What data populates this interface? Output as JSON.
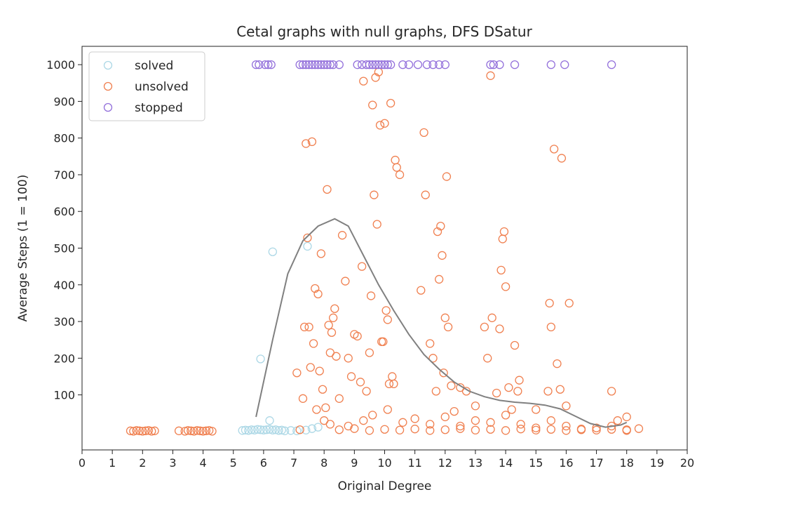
{
  "chart_data": {
    "type": "scatter",
    "title": "Cetal graphs with null graphs, DFS DSatur",
    "xlabel": "Original Degree",
    "ylabel": "Average Steps (1 = 100)",
    "xlim": [
      0,
      20
    ],
    "ylim": [
      -50,
      1050
    ],
    "x_ticks": [
      0,
      1,
      2,
      3,
      4,
      5,
      6,
      7,
      8,
      9,
      10,
      11,
      12,
      13,
      14,
      15,
      16,
      17,
      18,
      19,
      20
    ],
    "y_ticks": [
      100,
      200,
      300,
      400,
      500,
      600,
      700,
      800,
      900,
      1000
    ],
    "grid": false,
    "legend": {
      "position": "upper-left",
      "marker": "hollow-circle"
    },
    "colors": {
      "solved": "#add8e6",
      "unsolved": "#f08050",
      "stopped": "#9370db",
      "trend": "#808080"
    },
    "series": [
      {
        "name": "solved",
        "color": "#add8e6",
        "points": [
          [
            5.9,
            198
          ],
          [
            6.3,
            490
          ],
          [
            6.2,
            30
          ],
          [
            7.45,
            505
          ],
          [
            5.3,
            3
          ],
          [
            5.4,
            4
          ],
          [
            5.5,
            3
          ],
          [
            5.6,
            5
          ],
          [
            5.7,
            4
          ],
          [
            5.8,
            6
          ],
          [
            5.9,
            5
          ],
          [
            6.0,
            4
          ],
          [
            6.1,
            5
          ],
          [
            6.2,
            6
          ],
          [
            6.3,
            4
          ],
          [
            6.4,
            5
          ],
          [
            6.5,
            3
          ],
          [
            6.6,
            4
          ],
          [
            6.7,
            2
          ],
          [
            6.9,
            3
          ],
          [
            7.1,
            2
          ],
          [
            7.4,
            4
          ],
          [
            7.6,
            8
          ],
          [
            7.8,
            12
          ]
        ]
      },
      {
        "name": "unsolved",
        "color": "#f08050",
        "points": [
          [
            1.6,
            2
          ],
          [
            1.7,
            1
          ],
          [
            1.8,
            3
          ],
          [
            1.9,
            2
          ],
          [
            2.0,
            1
          ],
          [
            2.1,
            2
          ],
          [
            2.2,
            3
          ],
          [
            2.3,
            1
          ],
          [
            2.4,
            2
          ],
          [
            3.2,
            2
          ],
          [
            3.4,
            1
          ],
          [
            3.5,
            3
          ],
          [
            3.6,
            2
          ],
          [
            3.7,
            1
          ],
          [
            3.8,
            3
          ],
          [
            3.9,
            2
          ],
          [
            4.0,
            1
          ],
          [
            4.1,
            2
          ],
          [
            4.2,
            3
          ],
          [
            4.3,
            1
          ],
          [
            7.1,
            160
          ],
          [
            7.2,
            5
          ],
          [
            7.3,
            90
          ],
          [
            7.35,
            285
          ],
          [
            7.4,
            785
          ],
          [
            7.45,
            528
          ],
          [
            7.5,
            285
          ],
          [
            7.55,
            175
          ],
          [
            7.6,
            790
          ],
          [
            7.65,
            240
          ],
          [
            7.7,
            390
          ],
          [
            7.75,
            60
          ],
          [
            7.8,
            375
          ],
          [
            7.85,
            165
          ],
          [
            7.9,
            485
          ],
          [
            7.95,
            115
          ],
          [
            8.0,
            30
          ],
          [
            8.05,
            65
          ],
          [
            8.1,
            660
          ],
          [
            8.15,
            290
          ],
          [
            8.2,
            215
          ],
          [
            8.25,
            270
          ],
          [
            8.3,
            310
          ],
          [
            8.35,
            335
          ],
          [
            8.4,
            205
          ],
          [
            8.5,
            90
          ],
          [
            8.6,
            535
          ],
          [
            8.7,
            410
          ],
          [
            8.8,
            200
          ],
          [
            8.9,
            150
          ],
          [
            9.0,
            265
          ],
          [
            9.1,
            260
          ],
          [
            9.2,
            135
          ],
          [
            9.25,
            450
          ],
          [
            9.3,
            955
          ],
          [
            9.4,
            110
          ],
          [
            9.5,
            215
          ],
          [
            9.55,
            370
          ],
          [
            9.6,
            890
          ],
          [
            9.65,
            645
          ],
          [
            9.7,
            965
          ],
          [
            9.75,
            565
          ],
          [
            9.8,
            980
          ],
          [
            9.85,
            835
          ],
          [
            9.9,
            245
          ],
          [
            9.95,
            245
          ],
          [
            10.0,
            840
          ],
          [
            10.05,
            330
          ],
          [
            10.1,
            305
          ],
          [
            10.15,
            130
          ],
          [
            10.2,
            895
          ],
          [
            10.25,
            150
          ],
          [
            10.3,
            130
          ],
          [
            10.35,
            740
          ],
          [
            10.4,
            720
          ],
          [
            10.5,
            700
          ],
          [
            11.2,
            385
          ],
          [
            11.3,
            815
          ],
          [
            11.35,
            645
          ],
          [
            11.5,
            240
          ],
          [
            11.6,
            200
          ],
          [
            11.7,
            110
          ],
          [
            11.75,
            545
          ],
          [
            11.8,
            415
          ],
          [
            11.85,
            560
          ],
          [
            11.9,
            480
          ],
          [
            11.95,
            160
          ],
          [
            12.0,
            310
          ],
          [
            12.05,
            695
          ],
          [
            12.1,
            285
          ],
          [
            12.2,
            125
          ],
          [
            12.3,
            55
          ],
          [
            12.5,
            120
          ],
          [
            12.7,
            110
          ],
          [
            13.0,
            70
          ],
          [
            13.3,
            285
          ],
          [
            13.4,
            200
          ],
          [
            13.5,
            970
          ],
          [
            13.55,
            310
          ],
          [
            13.7,
            105
          ],
          [
            13.8,
            280
          ],
          [
            13.85,
            440
          ],
          [
            13.9,
            525
          ],
          [
            13.95,
            545
          ],
          [
            14.0,
            395
          ],
          [
            14.1,
            120
          ],
          [
            14.2,
            60
          ],
          [
            14.3,
            235
          ],
          [
            14.4,
            110
          ],
          [
            14.45,
            140
          ],
          [
            15.0,
            60
          ],
          [
            15.4,
            110
          ],
          [
            15.45,
            350
          ],
          [
            15.5,
            285
          ],
          [
            15.6,
            770
          ],
          [
            15.7,
            185
          ],
          [
            15.8,
            115
          ],
          [
            15.85,
            745
          ],
          [
            16.0,
            70
          ],
          [
            16.1,
            350
          ],
          [
            17.5,
            110
          ],
          [
            17.7,
            30
          ],
          [
            18.0,
            40
          ],
          [
            8.2,
            20
          ],
          [
            8.8,
            15
          ],
          [
            9.3,
            30
          ],
          [
            9.6,
            45
          ],
          [
            10.1,
            60
          ],
          [
            10.6,
            25
          ],
          [
            11.0,
            35
          ],
          [
            11.5,
            20
          ],
          [
            12.0,
            40
          ],
          [
            12.5,
            15
          ],
          [
            13.0,
            30
          ],
          [
            13.5,
            25
          ],
          [
            14.0,
            45
          ],
          [
            14.5,
            20
          ],
          [
            15.0,
            10
          ],
          [
            15.5,
            30
          ],
          [
            16.0,
            15
          ],
          [
            16.5,
            5
          ],
          [
            17.0,
            10
          ],
          [
            17.5,
            15
          ],
          [
            18.0,
            5
          ],
          [
            18.4,
            8
          ],
          [
            8.5,
            5
          ],
          [
            9.0,
            8
          ],
          [
            9.5,
            3
          ],
          [
            10.0,
            6
          ],
          [
            10.5,
            4
          ],
          [
            11.0,
            7
          ],
          [
            11.5,
            3
          ],
          [
            12.0,
            5
          ],
          [
            12.5,
            8
          ],
          [
            13.0,
            4
          ],
          [
            13.5,
            6
          ],
          [
            14.0,
            3
          ],
          [
            14.5,
            7
          ],
          [
            15.0,
            4
          ],
          [
            15.5,
            6
          ],
          [
            16.0,
            3
          ],
          [
            16.5,
            7
          ],
          [
            17.0,
            4
          ],
          [
            17.5,
            6
          ],
          [
            18.0,
            3
          ]
        ]
      },
      {
        "name": "stopped",
        "color": "#9370db",
        "points": [
          [
            5.75,
            1000
          ],
          [
            5.85,
            1000
          ],
          [
            6.05,
            1000
          ],
          [
            6.15,
            1000
          ],
          [
            6.25,
            1000
          ],
          [
            7.2,
            1000
          ],
          [
            7.3,
            1000
          ],
          [
            7.4,
            1000
          ],
          [
            7.5,
            1000
          ],
          [
            7.6,
            1000
          ],
          [
            7.7,
            1000
          ],
          [
            7.8,
            1000
          ],
          [
            7.9,
            1000
          ],
          [
            8.0,
            1000
          ],
          [
            8.1,
            1000
          ],
          [
            8.2,
            1000
          ],
          [
            8.3,
            1000
          ],
          [
            8.5,
            1000
          ],
          [
            9.1,
            1000
          ],
          [
            9.25,
            1000
          ],
          [
            9.4,
            1000
          ],
          [
            9.5,
            1000
          ],
          [
            9.6,
            1000
          ],
          [
            9.7,
            1000
          ],
          [
            9.8,
            1000
          ],
          [
            9.9,
            1000
          ],
          [
            10.0,
            1000
          ],
          [
            10.1,
            1000
          ],
          [
            10.2,
            1000
          ],
          [
            10.6,
            1000
          ],
          [
            10.8,
            1000
          ],
          [
            11.1,
            1000
          ],
          [
            11.4,
            1000
          ],
          [
            11.6,
            1000
          ],
          [
            11.8,
            1000
          ],
          [
            12.0,
            1000
          ],
          [
            13.5,
            1000
          ],
          [
            13.6,
            1000
          ],
          [
            13.8,
            1000
          ],
          [
            14.3,
            1000
          ],
          [
            15.5,
            1000
          ],
          [
            15.95,
            1000
          ],
          [
            17.5,
            1000
          ]
        ]
      }
    ],
    "trend_line": {
      "color": "#808080",
      "points": [
        [
          5.75,
          40
        ],
        [
          6.3,
          250
        ],
        [
          6.8,
          430
        ],
        [
          7.3,
          520
        ],
        [
          7.8,
          560
        ],
        [
          8.35,
          580
        ],
        [
          8.8,
          560
        ],
        [
          9.3,
          480
        ],
        [
          9.8,
          400
        ],
        [
          10.3,
          330
        ],
        [
          10.8,
          265
        ],
        [
          11.3,
          210
        ],
        [
          11.8,
          170
        ],
        [
          12.3,
          135
        ],
        [
          12.8,
          110
        ],
        [
          13.3,
          95
        ],
        [
          13.8,
          85
        ],
        [
          14.3,
          80
        ],
        [
          14.8,
          77
        ],
        [
          15.3,
          72
        ],
        [
          15.8,
          62
        ],
        [
          16.3,
          42
        ],
        [
          16.8,
          22
        ],
        [
          17.3,
          12
        ],
        [
          17.8,
          18
        ],
        [
          18.0,
          25
        ]
      ]
    }
  }
}
